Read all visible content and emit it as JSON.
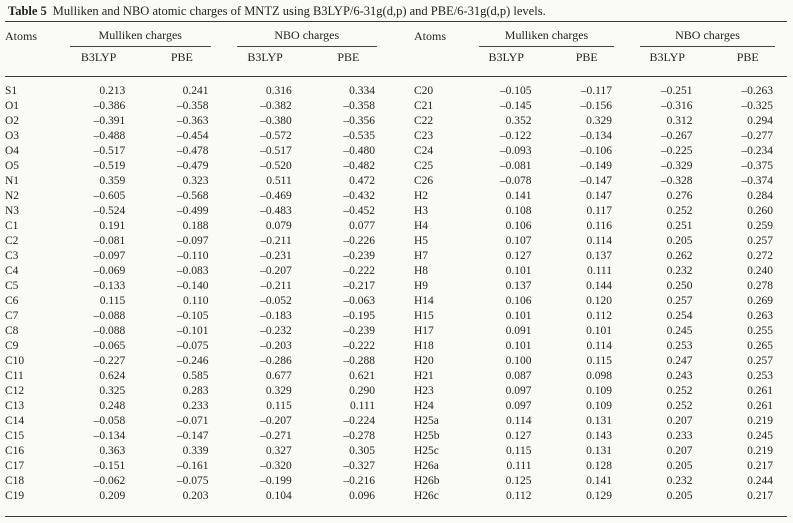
{
  "title": {
    "label": "Table 5",
    "text": "Mulliken and NBO atomic charges of MNTZ using B3LYP/6-31g(d,p) and PBE/6-31g(d,p) levels."
  },
  "header": {
    "atoms": "Atoms",
    "mulliken_group": "Mulliken charges",
    "nbo_group": "NBO charges",
    "b3lyp": "B3LYP",
    "pbe": "PBE"
  },
  "left_rows": [
    [
      "S1",
      "0.213",
      "0.241",
      "0.316",
      "0.334"
    ],
    [
      "O1",
      "–0.386",
      "–0.358",
      "–0.382",
      "–0.358"
    ],
    [
      "O2",
      "–0.391",
      "–0.363",
      "–0.380",
      "–0.356"
    ],
    [
      "O3",
      "–0.488",
      "–0.454",
      "–0.572",
      "–0.535"
    ],
    [
      "O4",
      "–0.517",
      "–0.478",
      "–0.517",
      "–0.480"
    ],
    [
      "O5",
      "–0.519",
      "–0.479",
      "–0.520",
      "–0.482"
    ],
    [
      "N1",
      "0.359",
      "0.323",
      "0.511",
      "0.472"
    ],
    [
      "N2",
      "–0.605",
      "–0.568",
      "–0.469",
      "–0.432"
    ],
    [
      "N3",
      "–0.524",
      "–0.499",
      "–0.483",
      "–0.452"
    ],
    [
      "C1",
      "0.191",
      "0.188",
      "0.079",
      "0.077"
    ],
    [
      "C2",
      "–0.081",
      "–0.097",
      "–0.211",
      "–0.226"
    ],
    [
      "C3",
      "–0.097",
      "–0.110",
      "–0.231",
      "–0.239"
    ],
    [
      "C4",
      "–0.069",
      "–0.083",
      "–0.207",
      "–0.222"
    ],
    [
      "C5",
      "–0.133",
      "–0.140",
      "–0.211",
      "–0.217"
    ],
    [
      "C6",
      "0.115",
      "0.110",
      "–0.052",
      "–0.063"
    ],
    [
      "C7",
      "–0.088",
      "–0.105",
      "–0.183",
      "–0.195"
    ],
    [
      "C8",
      "–0.088",
      "–0.101",
      "–0.232",
      "–0.239"
    ],
    [
      "C9",
      "–0.065",
      "–0.075",
      "–0.203",
      "–0.222"
    ],
    [
      "C10",
      "–0.227",
      "–0.246",
      "–0.286",
      "–0.288"
    ],
    [
      "C11",
      "0.624",
      "0.585",
      "0.677",
      "0.621"
    ],
    [
      "C12",
      "0.325",
      "0.283",
      "0.329",
      "0.290"
    ],
    [
      "C13",
      "0.248",
      "0.233",
      "0.115",
      "0.111"
    ],
    [
      "C14",
      "–0.058",
      "–0.071",
      "–0.207",
      "–0.224"
    ],
    [
      "C15",
      "–0.134",
      "–0.147",
      "–0.271",
      "–0.278"
    ],
    [
      "C16",
      "0.363",
      "0.339",
      "0.327",
      "0.305"
    ],
    [
      "C17",
      "–0.151",
      "–0.161",
      "–0.320",
      "–0.327"
    ],
    [
      "C18",
      "–0.062",
      "–0.075",
      "–0.199",
      "–0.216"
    ],
    [
      "C19",
      "0.209",
      "0.203",
      "0.104",
      "0.096"
    ]
  ],
  "right_rows": [
    [
      "C20",
      "–0.105",
      "–0.117",
      "–0.251",
      "–0.263"
    ],
    [
      "C21",
      "–0.145",
      "–0.156",
      "–0.316",
      "–0.325"
    ],
    [
      "C22",
      "0.352",
      "0.329",
      "0.312",
      "0.294"
    ],
    [
      "C23",
      "–0.122",
      "–0.134",
      "–0.267",
      "–0.277"
    ],
    [
      "C24",
      "–0.093",
      "–0.106",
      "–0.225",
      "–0.234"
    ],
    [
      "C25",
      "–0.081",
      "–0.149",
      "–0.329",
      "–0.375"
    ],
    [
      "C26",
      "–0.078",
      "–0.147",
      "–0.328",
      "–0.374"
    ],
    [
      "H2",
      "0.141",
      "0.147",
      "0.276",
      "0.284"
    ],
    [
      "H3",
      "0.108",
      "0.117",
      "0.252",
      "0.260"
    ],
    [
      "H4",
      "0.106",
      "0.116",
      "0.251",
      "0.259"
    ],
    [
      "H5",
      "0.107",
      "0.114",
      "0.205",
      "0.257"
    ],
    [
      "H7",
      "0.127",
      "0.137",
      "0.262",
      "0.272"
    ],
    [
      "H8",
      "0.101",
      "0.111",
      "0.232",
      "0.240"
    ],
    [
      "H9",
      "0.137",
      "0.144",
      "0.250",
      "0.278"
    ],
    [
      "H14",
      "0.106",
      "0.120",
      "0.257",
      "0.269"
    ],
    [
      "H15",
      "0.101",
      "0.112",
      "0.254",
      "0.263"
    ],
    [
      "H17",
      "0.091",
      "0.101",
      "0.245",
      "0.255"
    ],
    [
      "H18",
      "0.101",
      "0.114",
      "0.253",
      "0.265"
    ],
    [
      "H20",
      "0.100",
      "0.115",
      "0.247",
      "0.257"
    ],
    [
      "H21",
      "0.087",
      "0.098",
      "0.243",
      "0.253"
    ],
    [
      "H23",
      "0.097",
      "0.109",
      "0.252",
      "0.261"
    ],
    [
      "H24",
      "0.097",
      "0.109",
      "0.252",
      "0.261"
    ],
    [
      "H25a",
      "0.114",
      "0.131",
      "0.207",
      "0.219"
    ],
    [
      "H25b",
      "0.127",
      "0.143",
      "0.233",
      "0.245"
    ],
    [
      "H25c",
      "0.115",
      "0.131",
      "0.207",
      "0.219"
    ],
    [
      "H26a",
      "0.111",
      "0.128",
      "0.205",
      "0.217"
    ],
    [
      "H26b",
      "0.125",
      "0.141",
      "0.232",
      "0.244"
    ],
    [
      "H26c",
      "0.112",
      "0.129",
      "0.205",
      "0.217"
    ]
  ]
}
